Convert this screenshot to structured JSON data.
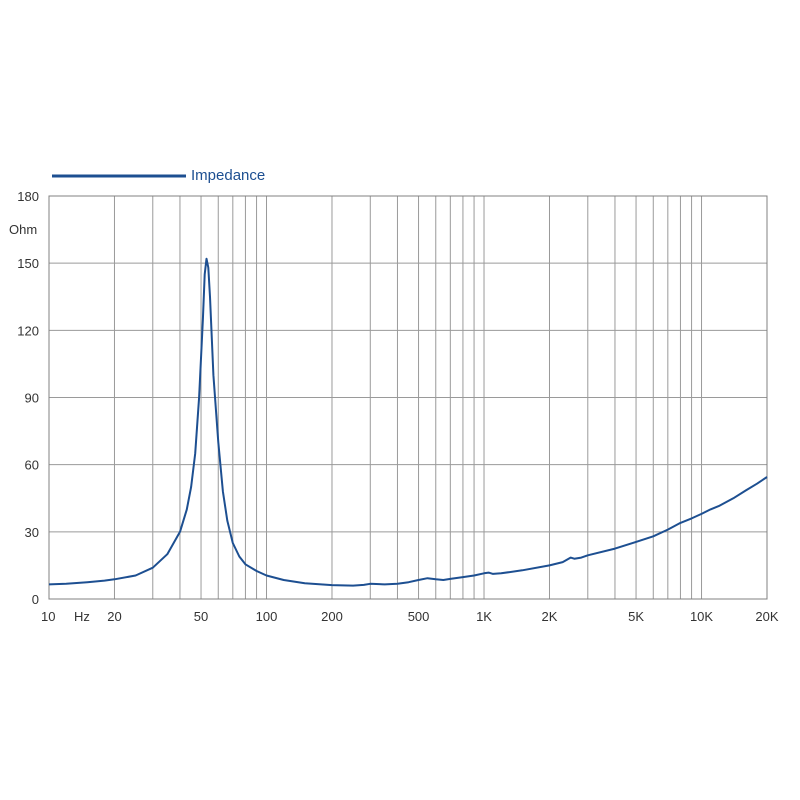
{
  "chart_data": {
    "type": "line",
    "xscale": "log",
    "xlim": [
      10,
      20000
    ],
    "ylim": [
      0,
      180
    ],
    "grid": true,
    "legend_position": "top-left",
    "unit_x": "Hz",
    "unit_y": "Ohm",
    "x_ticks": [
      {
        "value": 10,
        "label": "10"
      },
      {
        "value": 20,
        "label": "20"
      },
      {
        "value": 50,
        "label": "50"
      },
      {
        "value": 100,
        "label": "100"
      },
      {
        "value": 200,
        "label": "200"
      },
      {
        "value": 500,
        "label": "500"
      },
      {
        "value": 1000,
        "label": "1K"
      },
      {
        "value": 2000,
        "label": "2K"
      },
      {
        "value": 5000,
        "label": "5K"
      },
      {
        "value": 10000,
        "label": "10K"
      },
      {
        "value": 20000,
        "label": "20K"
      }
    ],
    "y_ticks": [
      0,
      30,
      60,
      90,
      120,
      150,
      180
    ],
    "series": [
      {
        "name": "Impedance",
        "color": "#1d4f91",
        "points": [
          [
            10,
            6.5
          ],
          [
            12,
            6.8
          ],
          [
            15,
            7.5
          ],
          [
            18,
            8.2
          ],
          [
            20,
            8.8
          ],
          [
            25,
            10.5
          ],
          [
            30,
            14
          ],
          [
            35,
            20
          ],
          [
            40,
            30
          ],
          [
            43,
            40
          ],
          [
            45,
            50
          ],
          [
            47,
            65
          ],
          [
            49,
            90
          ],
          [
            51,
            125
          ],
          [
            52,
            145
          ],
          [
            53,
            152
          ],
          [
            54,
            148
          ],
          [
            55,
            135
          ],
          [
            57,
            100
          ],
          [
            60,
            70
          ],
          [
            63,
            48
          ],
          [
            66,
            35
          ],
          [
            70,
            25
          ],
          [
            75,
            19
          ],
          [
            80,
            15.5
          ],
          [
            90,
            12.5
          ],
          [
            100,
            10.5
          ],
          [
            120,
            8.5
          ],
          [
            150,
            7
          ],
          [
            200,
            6.2
          ],
          [
            250,
            6
          ],
          [
            280,
            6.3
          ],
          [
            300,
            6.8
          ],
          [
            350,
            6.5
          ],
          [
            400,
            6.8
          ],
          [
            450,
            7.5
          ],
          [
            500,
            8.5
          ],
          [
            550,
            9.3
          ],
          [
            600,
            8.8
          ],
          [
            650,
            8.5
          ],
          [
            700,
            9
          ],
          [
            800,
            9.8
          ],
          [
            900,
            10.5
          ],
          [
            1000,
            11.5
          ],
          [
            1050,
            11.8
          ],
          [
            1100,
            11.2
          ],
          [
            1200,
            11.5
          ],
          [
            1500,
            12.8
          ],
          [
            2000,
            15
          ],
          [
            2300,
            16.5
          ],
          [
            2500,
            18.5
          ],
          [
            2600,
            18
          ],
          [
            2800,
            18.5
          ],
          [
            3000,
            19.5
          ],
          [
            4000,
            22.5
          ],
          [
            5000,
            25.5
          ],
          [
            6000,
            28
          ],
          [
            7000,
            31
          ],
          [
            8000,
            34
          ],
          [
            9000,
            36
          ],
          [
            10000,
            38
          ],
          [
            11000,
            40
          ],
          [
            12000,
            41.5
          ],
          [
            14000,
            45
          ],
          [
            16000,
            48.5
          ],
          [
            18000,
            51.5
          ],
          [
            20000,
            54.5
          ]
        ]
      }
    ]
  }
}
